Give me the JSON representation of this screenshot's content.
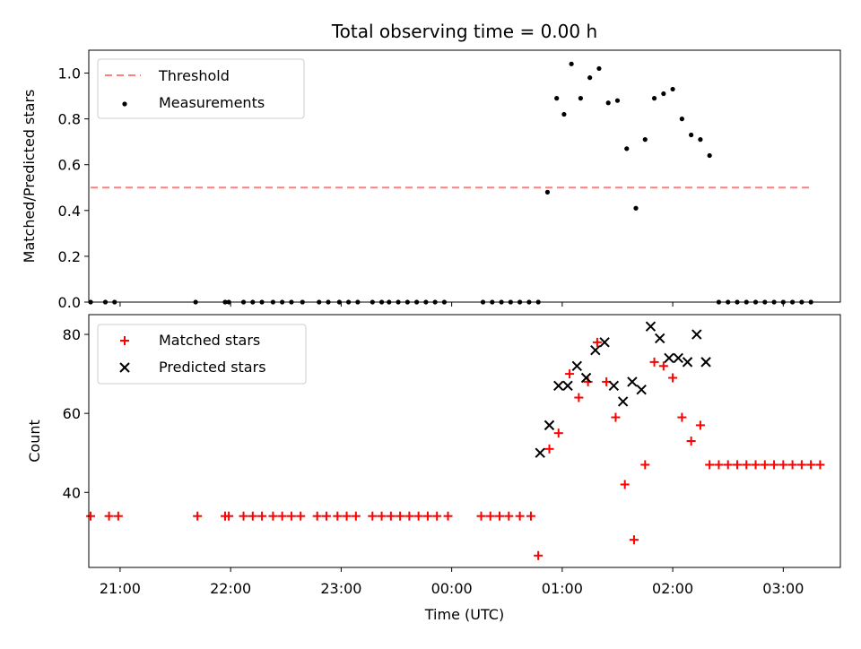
{
  "chart_data": [
    {
      "type": "scatter",
      "title": "Total observing time = 0.00 h",
      "xlabel": "",
      "ylabel": "Matched/Predicted stars",
      "ylim": [
        0,
        1.1
      ],
      "yticks": [
        "0.0",
        "0.2",
        "0.4",
        "0.6",
        "0.8",
        "1.0"
      ],
      "xlim": [
        "20:43",
        "03:31"
      ],
      "legend_position": "top-left",
      "colors": {
        "threshold": "#ff7f7f",
        "measurements": "#000000"
      },
      "threshold": {
        "name": "Threshold",
        "value": 0.5,
        "x_start": "20:44",
        "x_end": "03:16"
      },
      "series": [
        {
          "name": "Measurements",
          "x": [
            "20:44",
            "20:52",
            "20:57",
            "21:41",
            "21:57",
            "21:59",
            "22:07",
            "22:12",
            "22:17",
            "22:23",
            "22:28",
            "22:33",
            "22:39",
            "22:48",
            "22:53",
            "22:59",
            "23:04",
            "23:09",
            "23:17",
            "23:22",
            "23:26",
            "23:31",
            "23:36",
            "23:41",
            "23:46",
            "23:51",
            "23:56",
            "00:17",
            "00:22",
            "00:27",
            "00:32",
            "00:37",
            "00:42",
            "00:47",
            "00:52",
            "00:57",
            "01:01",
            "01:05",
            "01:10",
            "01:15",
            "01:20",
            "01:25",
            "01:30",
            "01:35",
            "01:40",
            "01:45",
            "01:50",
            "01:55",
            "02:00",
            "02:05",
            "02:10",
            "02:15",
            "02:20",
            "02:25",
            "02:30",
            "02:35",
            "02:40",
            "02:45",
            "02:50",
            "02:55",
            "03:00",
            "03:05",
            "03:10",
            "03:15"
          ],
          "y": [
            0,
            0,
            0,
            0,
            0,
            0,
            0,
            0,
            0,
            0,
            0,
            0,
            0,
            0,
            0,
            0,
            0,
            0,
            0,
            0,
            0,
            0,
            0,
            0,
            0,
            0,
            0,
            0,
            0,
            0,
            0,
            0,
            0,
            0,
            0.48,
            0.89,
            0.82,
            1.04,
            0.89,
            0.98,
            1.02,
            0.87,
            0.88,
            0.67,
            0.41,
            0.71,
            0.89,
            0.91,
            0.93,
            0.8,
            0.73,
            0.71,
            0.64,
            0,
            0,
            0,
            0,
            0,
            0,
            0,
            0,
            0,
            0,
            0
          ]
        }
      ]
    },
    {
      "type": "scatter",
      "title": "",
      "xlabel": "Time (UTC)",
      "ylabel": "Count",
      "ylim": [
        21,
        85
      ],
      "yticks": [
        "40",
        "60",
        "80"
      ],
      "xlim": [
        "20:43",
        "03:31"
      ],
      "xticks": [
        "21:00",
        "22:00",
        "23:00",
        "00:00",
        "01:00",
        "02:00",
        "03:00"
      ],
      "legend_position": "top-left",
      "colors": {
        "matched": "#ff0000",
        "predicted": "#000000"
      },
      "series": [
        {
          "name": "Matched stars",
          "marker": "plus",
          "x": [
            "20:44",
            "20:54",
            "20:59",
            "21:42",
            "21:57",
            "21:59",
            "22:07",
            "22:12",
            "22:17",
            "22:23",
            "22:28",
            "22:33",
            "22:38",
            "22:47",
            "22:52",
            "22:58",
            "23:03",
            "23:08",
            "23:17",
            "23:22",
            "23:27",
            "23:32",
            "23:37",
            "23:42",
            "23:47",
            "23:52",
            "23:58",
            "00:16",
            "00:21",
            "00:26",
            "00:31",
            "00:37",
            "00:43",
            "00:47",
            "00:53",
            "00:58",
            "01:04",
            "01:09",
            "01:14",
            "01:19",
            "01:24",
            "01:29",
            "01:34",
            "01:39",
            "01:45",
            "01:50",
            "01:55",
            "02:00",
            "02:05",
            "02:10",
            "02:15",
            "02:20",
            "02:25",
            "02:30",
            "02:35",
            "02:40",
            "02:45",
            "02:50",
            "02:55",
            "03:00",
            "03:05",
            "03:10",
            "03:15",
            "03:20"
          ],
          "y": [
            34,
            34,
            34,
            34,
            34,
            34,
            34,
            34,
            34,
            34,
            34,
            34,
            34,
            34,
            34,
            34,
            34,
            34,
            34,
            34,
            34,
            34,
            34,
            34,
            34,
            34,
            34,
            34,
            34,
            34,
            34,
            34,
            34,
            24,
            51,
            55,
            70,
            64,
            68,
            78,
            68,
            59,
            42,
            28,
            47,
            73,
            72,
            69,
            59,
            53,
            57,
            47,
            47,
            47,
            47,
            47,
            47,
            47,
            47,
            47,
            47,
            47,
            47,
            47
          ]
        },
        {
          "name": "Predicted stars",
          "marker": "x",
          "x": [
            "00:48",
            "00:53",
            "00:58",
            "01:03",
            "01:08",
            "01:13",
            "01:18",
            "01:23",
            "01:28",
            "01:33",
            "01:38",
            "01:43",
            "01:48",
            "01:53",
            "01:58",
            "02:03",
            "02:08",
            "02:13",
            "02:18"
          ],
          "y": [
            50,
            57,
            67,
            67,
            72,
            69,
            76,
            78,
            67,
            63,
            68,
            66,
            82,
            79,
            74,
            74,
            73,
            80,
            73
          ]
        }
      ]
    }
  ]
}
